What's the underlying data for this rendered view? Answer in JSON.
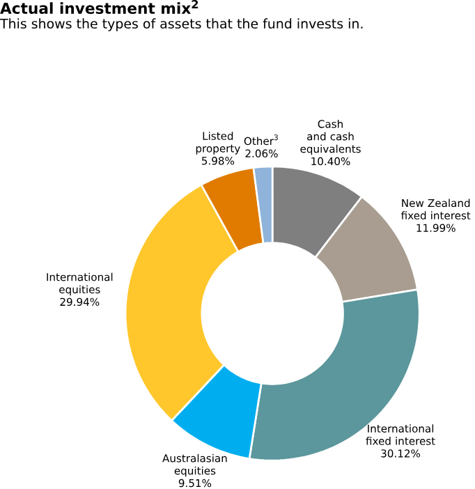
{
  "chart_data": {
    "type": "donut",
    "title": "Actual investment mix$^{2}$",
    "subtitle": "This shows the types of assets that the fund invests in.",
    "categories": [
      "Cash and cash equivalents",
      "New Zealand fixed interest",
      "International fixed interest",
      "Australasian equities",
      "International equities",
      "Listed property",
      "Other$^{3}$"
    ],
    "values": [
      10.4,
      11.99,
      30.12,
      9.51,
      29.94,
      5.98,
      2.06
    ],
    "colors": [
      "#7f7f7f",
      "#a89d90",
      "#5b979c",
      "#00aeef",
      "#ffc72c",
      "#e07b00",
      "#8fb3da"
    ],
    "value_labels": [
      "10.40%",
      "11.99%",
      "30.12%",
      "9.51%",
      "29.94%",
      "5.98%",
      "2.06%"
    ]
  }
}
